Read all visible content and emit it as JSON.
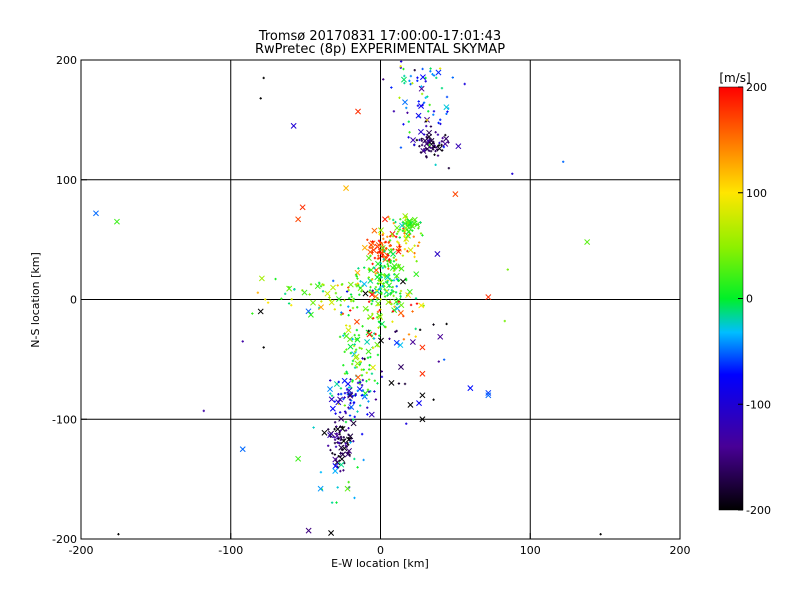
{
  "chart_data": {
    "type": "scatter",
    "title": "Tromsø 20170831 17:00:00-17:01:43",
    "subtitle": "RwPretec (8p) EXPERIMENTAL SKYMAP",
    "xlabel": "E-W location [km]",
    "ylabel": "N-S location [km]",
    "xlim": [
      -200,
      200
    ],
    "ylim": [
      -200,
      200
    ],
    "xticks": [
      -200,
      -100,
      0,
      100,
      200
    ],
    "yticks": [
      -200,
      -100,
      0,
      100,
      200
    ],
    "grid": true,
    "colorbar": {
      "label": "[m/s]",
      "range": [
        -200,
        200
      ],
      "ticks": [
        200,
        100,
        0,
        -100,
        -200
      ]
    },
    "clusters": [
      {
        "x": 35,
        "y": 130,
        "sx": 6,
        "sy": 5,
        "v": -170,
        "sv": 25,
        "n": 55
      },
      {
        "x": 30,
        "y": 155,
        "sx": 10,
        "sy": 18,
        "v": -60,
        "sv": 60,
        "n": 55
      },
      {
        "x": 25,
        "y": 185,
        "sx": 12,
        "sy": 8,
        "v": -20,
        "sv": 50,
        "n": 25
      },
      {
        "x": 3,
        "y": 42,
        "sx": 6,
        "sy": 7,
        "v": 175,
        "sv": 25,
        "n": 70
      },
      {
        "x": 15,
        "y": 55,
        "sx": 7,
        "sy": 7,
        "v": 100,
        "sv": 40,
        "n": 40
      },
      {
        "x": 18,
        "y": 62,
        "sx": 5,
        "sy": 4,
        "v": 20,
        "sv": 20,
        "n": 40
      },
      {
        "x": 3,
        "y": 15,
        "sx": 8,
        "sy": 12,
        "v": 10,
        "sv": 25,
        "n": 130
      },
      {
        "x": -35,
        "y": 3,
        "sx": 25,
        "sy": 8,
        "v": 40,
        "sv": 40,
        "n": 70
      },
      {
        "x": -15,
        "y": -45,
        "sx": 8,
        "sy": 25,
        "v": 20,
        "sv": 30,
        "n": 90
      },
      {
        "x": -20,
        "y": -82,
        "sx": 7,
        "sy": 10,
        "v": -70,
        "sv": 40,
        "n": 60
      },
      {
        "x": -27,
        "y": -118,
        "sx": 5,
        "sy": 11,
        "v": -165,
        "sv": 30,
        "n": 80
      },
      {
        "x": -28,
        "y": -148,
        "sx": 8,
        "sy": 12,
        "v": -20,
        "sv": 30,
        "n": 15
      },
      {
        "x": 5,
        "y": -5,
        "sx": 15,
        "sy": 15,
        "v": 130,
        "sv": 70,
        "n": 40
      },
      {
        "x": 10,
        "y": -45,
        "sx": 20,
        "sy": 30,
        "v": -100,
        "sv": 80,
        "n": 35
      }
    ],
    "outliers": [
      {
        "x": -58,
        "y": 145,
        "v": -100,
        "m": "x"
      },
      {
        "x": -15,
        "y": 157,
        "v": 180,
        "m": "x"
      },
      {
        "x": -78,
        "y": 185,
        "v": -200,
        "m": "+"
      },
      {
        "x": -80,
        "y": 168,
        "v": -200,
        "m": "+"
      },
      {
        "x": -190,
        "y": 72,
        "v": -50,
        "m": "x"
      },
      {
        "x": -176,
        "y": 65,
        "v": 20,
        "m": "x"
      },
      {
        "x": -55,
        "y": 67,
        "v": 170,
        "m": "x"
      },
      {
        "x": -52,
        "y": 77,
        "v": 180,
        "m": "x"
      },
      {
        "x": -23,
        "y": 93,
        "v": 120,
        "m": "x"
      },
      {
        "x": 50,
        "y": 88,
        "v": 170,
        "m": "x"
      },
      {
        "x": 138,
        "y": 48,
        "v": 30,
        "m": "x"
      },
      {
        "x": 38,
        "y": 38,
        "v": -110,
        "m": "x"
      },
      {
        "x": 72,
        "y": 2,
        "v": 180,
        "m": "x"
      },
      {
        "x": 85,
        "y": 25,
        "v": 40,
        "m": "+"
      },
      {
        "x": 83,
        "y": -18,
        "v": 40,
        "m": "+"
      },
      {
        "x": -80,
        "y": -10,
        "v": -200,
        "m": "x"
      },
      {
        "x": -78,
        "y": -40,
        "v": -200,
        "m": "+"
      },
      {
        "x": 28,
        "y": -40,
        "v": 180,
        "m": "x"
      },
      {
        "x": 28,
        "y": -62,
        "v": 180,
        "m": "x"
      },
      {
        "x": 28,
        "y": -80,
        "v": -200,
        "m": "x"
      },
      {
        "x": 20,
        "y": -88,
        "v": -200,
        "m": "x"
      },
      {
        "x": 28,
        "y": -100,
        "v": -200,
        "m": "x"
      },
      {
        "x": 60,
        "y": -74,
        "v": -70,
        "m": "x"
      },
      {
        "x": 72,
        "y": -78,
        "v": -60,
        "m": "x"
      },
      {
        "x": 72,
        "y": -80,
        "v": -50,
        "m": "x"
      },
      {
        "x": -92,
        "y": -35,
        "v": -130,
        "m": "+"
      },
      {
        "x": -118,
        "y": -93,
        "v": -130,
        "m": "+"
      },
      {
        "x": -92,
        "y": -125,
        "v": -50,
        "m": "x"
      },
      {
        "x": -55,
        "y": -133,
        "v": 20,
        "m": "x"
      },
      {
        "x": -40,
        "y": -158,
        "v": -40,
        "m": "x"
      },
      {
        "x": -22,
        "y": -158,
        "v": 30,
        "m": "x"
      },
      {
        "x": -48,
        "y": -193,
        "v": -150,
        "m": "x"
      },
      {
        "x": -33,
        "y": -195,
        "v": -200,
        "m": "x"
      },
      {
        "x": -175,
        "y": -196,
        "v": -200,
        "m": "+"
      },
      {
        "x": 147,
        "y": -196,
        "v": -200,
        "m": "+"
      },
      {
        "x": 122,
        "y": 115,
        "v": -50,
        "m": "+"
      },
      {
        "x": 88,
        "y": 105,
        "v": -100,
        "m": "+"
      },
      {
        "x": 27,
        "y": 140,
        "v": -110,
        "m": "x"
      },
      {
        "x": 52,
        "y": 128,
        "v": -120,
        "m": "x"
      },
      {
        "x": 3,
        "y": 67,
        "v": 190,
        "m": "x"
      },
      {
        "x": 12,
        "y": 40,
        "v": 190,
        "m": "x"
      },
      {
        "x": -15,
        "y": -65,
        "v": 160,
        "m": "x"
      },
      {
        "x": 15,
        "y": 15,
        "v": -200,
        "m": "x"
      },
      {
        "x": -10,
        "y": 5,
        "v": -200,
        "m": "x"
      }
    ]
  }
}
